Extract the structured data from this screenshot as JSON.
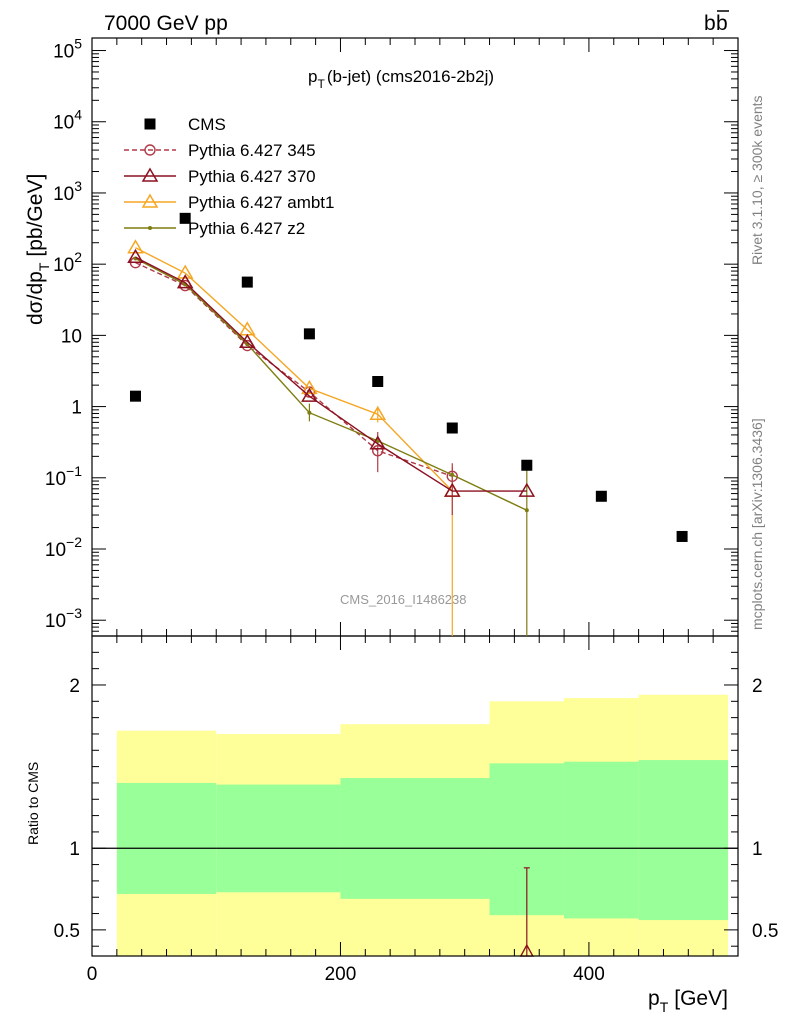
{
  "header": {
    "left_label": "7000 GeV pp",
    "right_label_base": "b",
    "right_label_bar": "b"
  },
  "plot_title": {
    "p": "p",
    "sub": "T",
    "rest": "(b-jet) (cms2016-2b2j)"
  },
  "y_axis_label": {
    "main": "dσ/dp",
    "sub": "T",
    "unit": "[pb/GeV]"
  },
  "x_axis_label": {
    "p": "p",
    "sub": "T",
    "unit": "[GeV]"
  },
  "ratio_axis_label": "Ratio to CMS",
  "side_text_top": "Rivet 3.1.10, ≥ 300k events",
  "side_text_bottom": "mcplots.cern.ch [arXiv:1306.3436]",
  "watermark": "CMS_2016_I1486238",
  "colors": {
    "cms": "#000000",
    "p345": "#b03a48",
    "p370": "#8b1020",
    "ambt1": "#f5a623",
    "z2": "#7d7d10",
    "band_yellow": "#ffff99",
    "band_green": "#99ff99"
  },
  "chart_data": {
    "type": "scatter",
    "x_unit": "GeV",
    "xlim": [
      0,
      520
    ],
    "ylim_main": [
      0.0006,
      150000
    ],
    "y_scale_main": "log",
    "ylim_ratio": [
      0.34,
      2.3
    ],
    "ratio_ticks": [
      "0.5",
      "1",
      "2"
    ],
    "x_ticks": [
      "0",
      "200",
      "400"
    ],
    "y_ticks_main": [
      {
        "value": 0.001,
        "base": "10",
        "exp": "−3"
      },
      {
        "value": 0.01,
        "base": "10",
        "exp": "−2"
      },
      {
        "value": 0.1,
        "base": "10",
        "exp": "−1"
      },
      {
        "value": 1,
        "base": "1",
        "exp": ""
      },
      {
        "value": 10,
        "base": "10",
        "exp": ""
      },
      {
        "value": 100,
        "base": "10",
        "exp": "2"
      },
      {
        "value": 1000,
        "base": "10",
        "exp": "3"
      },
      {
        "value": 10000,
        "base": "10",
        "exp": "4"
      },
      {
        "value": 100000,
        "base": "10",
        "exp": "5"
      }
    ],
    "series": [
      {
        "name": "CMS",
        "key": "cms",
        "marker": "square",
        "x": [
          35,
          75,
          125,
          175,
          230,
          290,
          350,
          410,
          475
        ],
        "y": [
          1.4,
          440,
          56,
          10.5,
          2.25,
          0.5,
          0.15,
          0.055,
          0.015
        ]
      },
      {
        "name": "Pythia 6.427 345",
        "key": "p345",
        "marker": "circle",
        "dash": true,
        "x": [
          35,
          75,
          125,
          175,
          230,
          290
        ],
        "y": [
          105,
          50,
          7.2,
          1.6,
          0.24,
          0.105
        ]
      },
      {
        "name": "Pythia 6.427 370",
        "key": "p370",
        "marker": "triangle",
        "x": [
          35,
          75,
          125,
          175,
          230,
          290,
          350
        ],
        "y": [
          125,
          55,
          8,
          1.4,
          0.3,
          0.065,
          0.065
        ]
      },
      {
        "name": "Pythia 6.427 ambt1",
        "key": "ambt1",
        "marker": "triangle",
        "x": [
          35,
          75,
          125,
          175,
          230,
          290
        ],
        "y": [
          170,
          75,
          12,
          1.8,
          0.78,
          0.065
        ]
      },
      {
        "name": "Pythia 6.427 z2",
        "key": "z2",
        "marker": "dot",
        "x": [
          35,
          75,
          125,
          175,
          230,
          290,
          350
        ],
        "y": [
          120,
          52,
          7.5,
          0.82,
          0.33,
          0.11,
          0.035
        ]
      }
    ],
    "ratio_bands": [
      {
        "x0": 20,
        "x1": 100,
        "g_lo": 0.72,
        "g_hi": 1.4,
        "y_lo": 0.34,
        "y_hi": 1.72
      },
      {
        "x0": 100,
        "x1": 200,
        "g_lo": 0.73,
        "g_hi": 1.39,
        "y_lo": 0.34,
        "y_hi": 1.7
      },
      {
        "x0": 200,
        "x1": 320,
        "g_lo": 0.69,
        "g_hi": 1.43,
        "y_lo": 0.34,
        "y_hi": 1.76
      },
      {
        "x0": 320,
        "x1": 380,
        "g_lo": 0.59,
        "g_hi": 1.52,
        "y_lo": 0.34,
        "y_hi": 1.9
      },
      {
        "x0": 380,
        "x1": 440,
        "g_lo": 0.57,
        "g_hi": 1.53,
        "y_lo": 0.34,
        "y_hi": 1.92
      },
      {
        "x0": 440,
        "x1": 512,
        "g_lo": 0.56,
        "g_hi": 1.54,
        "y_lo": 0.34,
        "y_hi": 1.94
      }
    ],
    "ratio_points": [
      {
        "series": "p370",
        "x": 350,
        "y": 0.37,
        "err_hi": 0.88,
        "err_lo": 0.34
      }
    ]
  }
}
